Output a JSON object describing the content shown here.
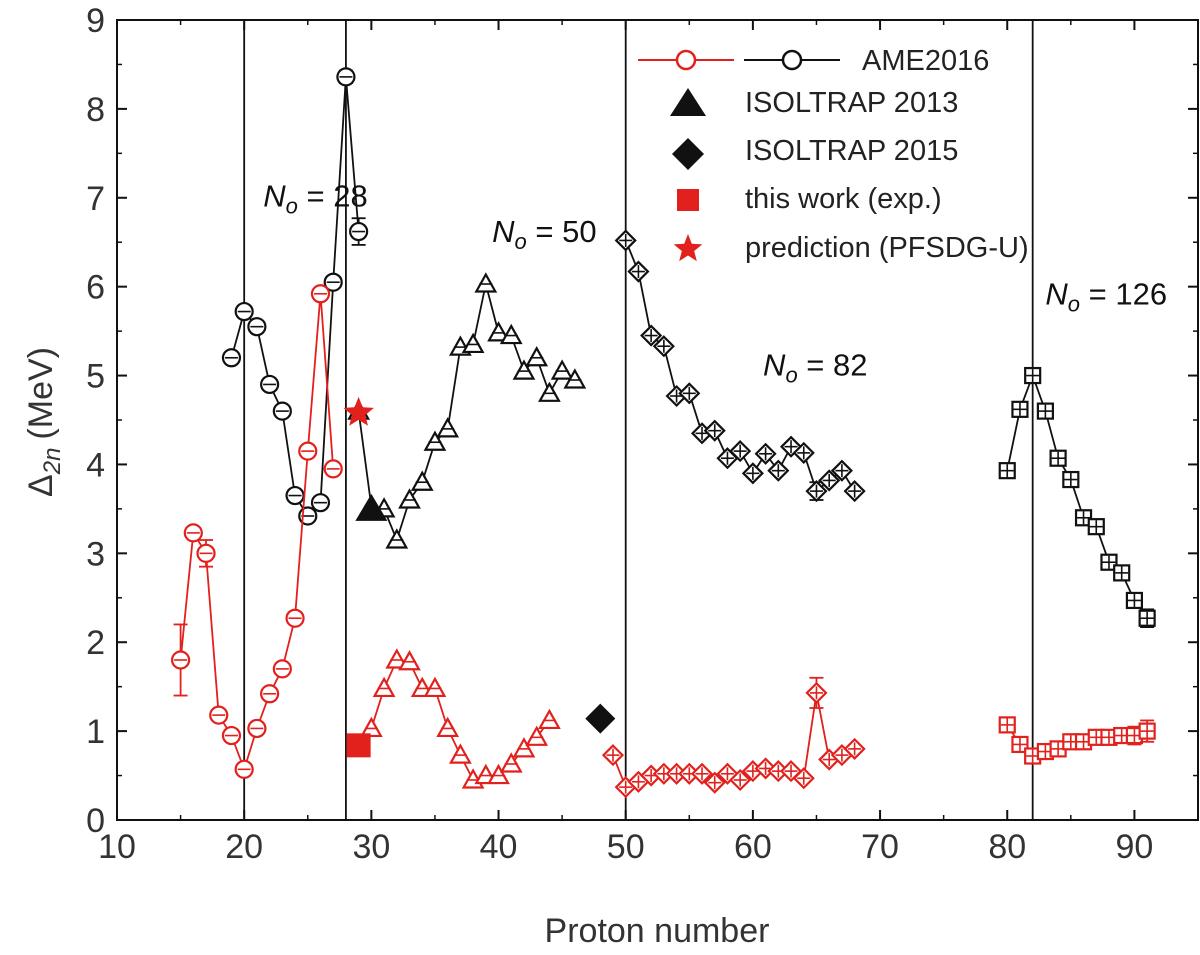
{
  "chart_data": {
    "type": "scatter",
    "xlabel": "Proton number",
    "ylabel": "Δ2n (MeV)",
    "ylabel_main": "Δ",
    "ylabel_sub": "2n",
    "ylabel_unit": "(MeV)",
    "xlim": [
      10,
      95
    ],
    "ylim": [
      0,
      9
    ],
    "xticks": [
      10,
      20,
      30,
      40,
      50,
      60,
      70,
      80,
      90
    ],
    "yticks": [
      0,
      1,
      2,
      3,
      4,
      5,
      6,
      7,
      8,
      9
    ],
    "shell_lines": [
      20,
      28,
      50,
      82
    ],
    "shell_labels": [
      {
        "n": "28",
        "x": 21.5,
        "y": 6.9
      },
      {
        "n": "50",
        "x": 39.5,
        "y": 6.5
      },
      {
        "n": "82",
        "x": 60.8,
        "y": 5.0
      },
      {
        "n": "126",
        "x": 83.0,
        "y": 5.8
      }
    ],
    "legend": [
      {
        "label": "AME2016",
        "marker": "line-circle-pair"
      },
      {
        "label": "ISOLTRAP 2013",
        "marker": "triangle"
      },
      {
        "label": "ISOLTRAP 2015",
        "marker": "diamond"
      },
      {
        "label": "this work (exp.)",
        "marker": "square"
      },
      {
        "label": "prediction (PFSDG-U)",
        "marker": "star"
      }
    ],
    "colors": {
      "black": "#111111",
      "red": "#e2201c"
    },
    "series": [
      {
        "name": "AME2016 N0=28 upper",
        "color": "black",
        "marker": "circle",
        "x": [
          19,
          20,
          21,
          22,
          23,
          24,
          25,
          26,
          27,
          28,
          29
        ],
        "y": [
          5.2,
          5.72,
          5.55,
          4.9,
          4.6,
          3.65,
          3.42,
          3.57,
          6.05,
          8.36,
          6.62
        ],
        "err": [
          0,
          0,
          0,
          0,
          0,
          0,
          0,
          0,
          0,
          0.07,
          0.15
        ]
      },
      {
        "name": "AME2016 N0=28 lower",
        "color": "red",
        "marker": "circle",
        "x": [
          15,
          16,
          17,
          18,
          19,
          20,
          21,
          22,
          23,
          24,
          25,
          26,
          27
        ],
        "y": [
          1.8,
          3.23,
          3.0,
          1.18,
          0.95,
          0.57,
          1.03,
          1.42,
          1.7,
          2.27,
          4.15,
          5.92,
          3.95
        ],
        "err": [
          0.4,
          0,
          0.15,
          0,
          0,
          0,
          0,
          0,
          0,
          0,
          0,
          0,
          0
        ]
      },
      {
        "name": "AME2016 N0=50 upper",
        "color": "black",
        "marker": "triangle",
        "x": [
          29,
          30,
          31,
          32,
          33,
          34,
          35,
          36,
          37,
          38,
          39,
          40,
          41,
          42,
          43,
          44,
          45,
          46
        ],
        "y": [
          4.6,
          3.52,
          3.5,
          3.15,
          3.6,
          3.8,
          4.25,
          4.4,
          5.32,
          5.35,
          6.03,
          5.48,
          5.45,
          5.05,
          5.2,
          4.8,
          5.05,
          4.95
        ],
        "err": []
      },
      {
        "name": "AME2016 N0=50 lower",
        "color": "red",
        "marker": "triangle",
        "x": [
          30,
          31,
          32,
          33,
          34,
          35,
          36,
          37,
          38,
          39,
          40,
          41,
          42,
          43,
          44
        ],
        "y": [
          1.03,
          1.48,
          1.8,
          1.78,
          1.48,
          1.48,
          1.03,
          0.73,
          0.45,
          0.5,
          0.5,
          0.63,
          0.8,
          0.93,
          1.12
        ],
        "err": []
      },
      {
        "name": "AME2016 N0=82 upper",
        "color": "black",
        "marker": "diamond",
        "x": [
          50,
          51,
          52,
          53,
          54,
          55,
          56,
          57,
          58,
          59,
          60,
          61,
          62,
          63,
          64,
          65,
          66,
          67,
          68
        ],
        "y": [
          6.52,
          6.17,
          5.45,
          5.33,
          4.77,
          4.8,
          4.35,
          4.38,
          4.07,
          4.15,
          3.9,
          4.12,
          3.93,
          4.2,
          4.13,
          3.7,
          3.82,
          3.93,
          3.7
        ],
        "err": [
          0,
          0,
          0,
          0,
          0,
          0,
          0,
          0,
          0,
          0,
          0,
          0,
          0,
          0,
          0,
          0.1,
          0,
          0,
          0
        ]
      },
      {
        "name": "AME2016 N0=82 lower",
        "color": "red",
        "marker": "diamond",
        "x": [
          49,
          50,
          51,
          52,
          53,
          54,
          55,
          56,
          57,
          58,
          59,
          60,
          61,
          62,
          63,
          64,
          65,
          66,
          67,
          68
        ],
        "y": [
          0.73,
          0.37,
          0.43,
          0.5,
          0.52,
          0.52,
          0.52,
          0.52,
          0.42,
          0.52,
          0.45,
          0.55,
          0.58,
          0.55,
          0.55,
          0.47,
          1.43,
          0.68,
          0.73,
          0.8
        ],
        "err": [
          0,
          0,
          0,
          0,
          0,
          0,
          0,
          0,
          0,
          0,
          0,
          0,
          0,
          0,
          0,
          0,
          0.17,
          0,
          0,
          0
        ]
      },
      {
        "name": "AME2016 N0=126 upper",
        "color": "black",
        "marker": "square",
        "x": [
          80,
          81,
          82,
          83,
          84,
          85,
          86,
          87,
          88,
          89,
          90,
          91
        ],
        "y": [
          3.93,
          4.62,
          5.0,
          4.6,
          4.07,
          3.83,
          3.4,
          3.3,
          2.9,
          2.78,
          2.47,
          2.27
        ],
        "err": [
          0,
          0,
          0,
          0,
          0,
          0,
          0,
          0,
          0,
          0,
          0,
          0.1
        ]
      },
      {
        "name": "AME2016 N0=126 lower",
        "color": "red",
        "marker": "square",
        "x": [
          80,
          81,
          82,
          83,
          84,
          85,
          86,
          87,
          88,
          89,
          90,
          91
        ],
        "y": [
          1.07,
          0.85,
          0.72,
          0.77,
          0.8,
          0.88,
          0.88,
          0.93,
          0.93,
          0.95,
          0.95,
          1.0
        ],
        "err": [
          0,
          0,
          0,
          0,
          0,
          0,
          0,
          0,
          0,
          0,
          0.1,
          0.12
        ]
      }
    ],
    "special_points": [
      {
        "name": "ISOLTRAP 2013",
        "marker": "triangle",
        "color": "black",
        "x": 30,
        "y": 3.5
      },
      {
        "name": "ISOLTRAP 2015",
        "marker": "diamond",
        "color": "black",
        "x": 48,
        "y": 1.14
      },
      {
        "name": "this work (exp.)",
        "marker": "square",
        "color": "red",
        "x": 29,
        "y": 0.84
      },
      {
        "name": "prediction (PFSDG-U)",
        "marker": "star",
        "color": "red",
        "x": 29,
        "y": 4.58
      }
    ]
  }
}
